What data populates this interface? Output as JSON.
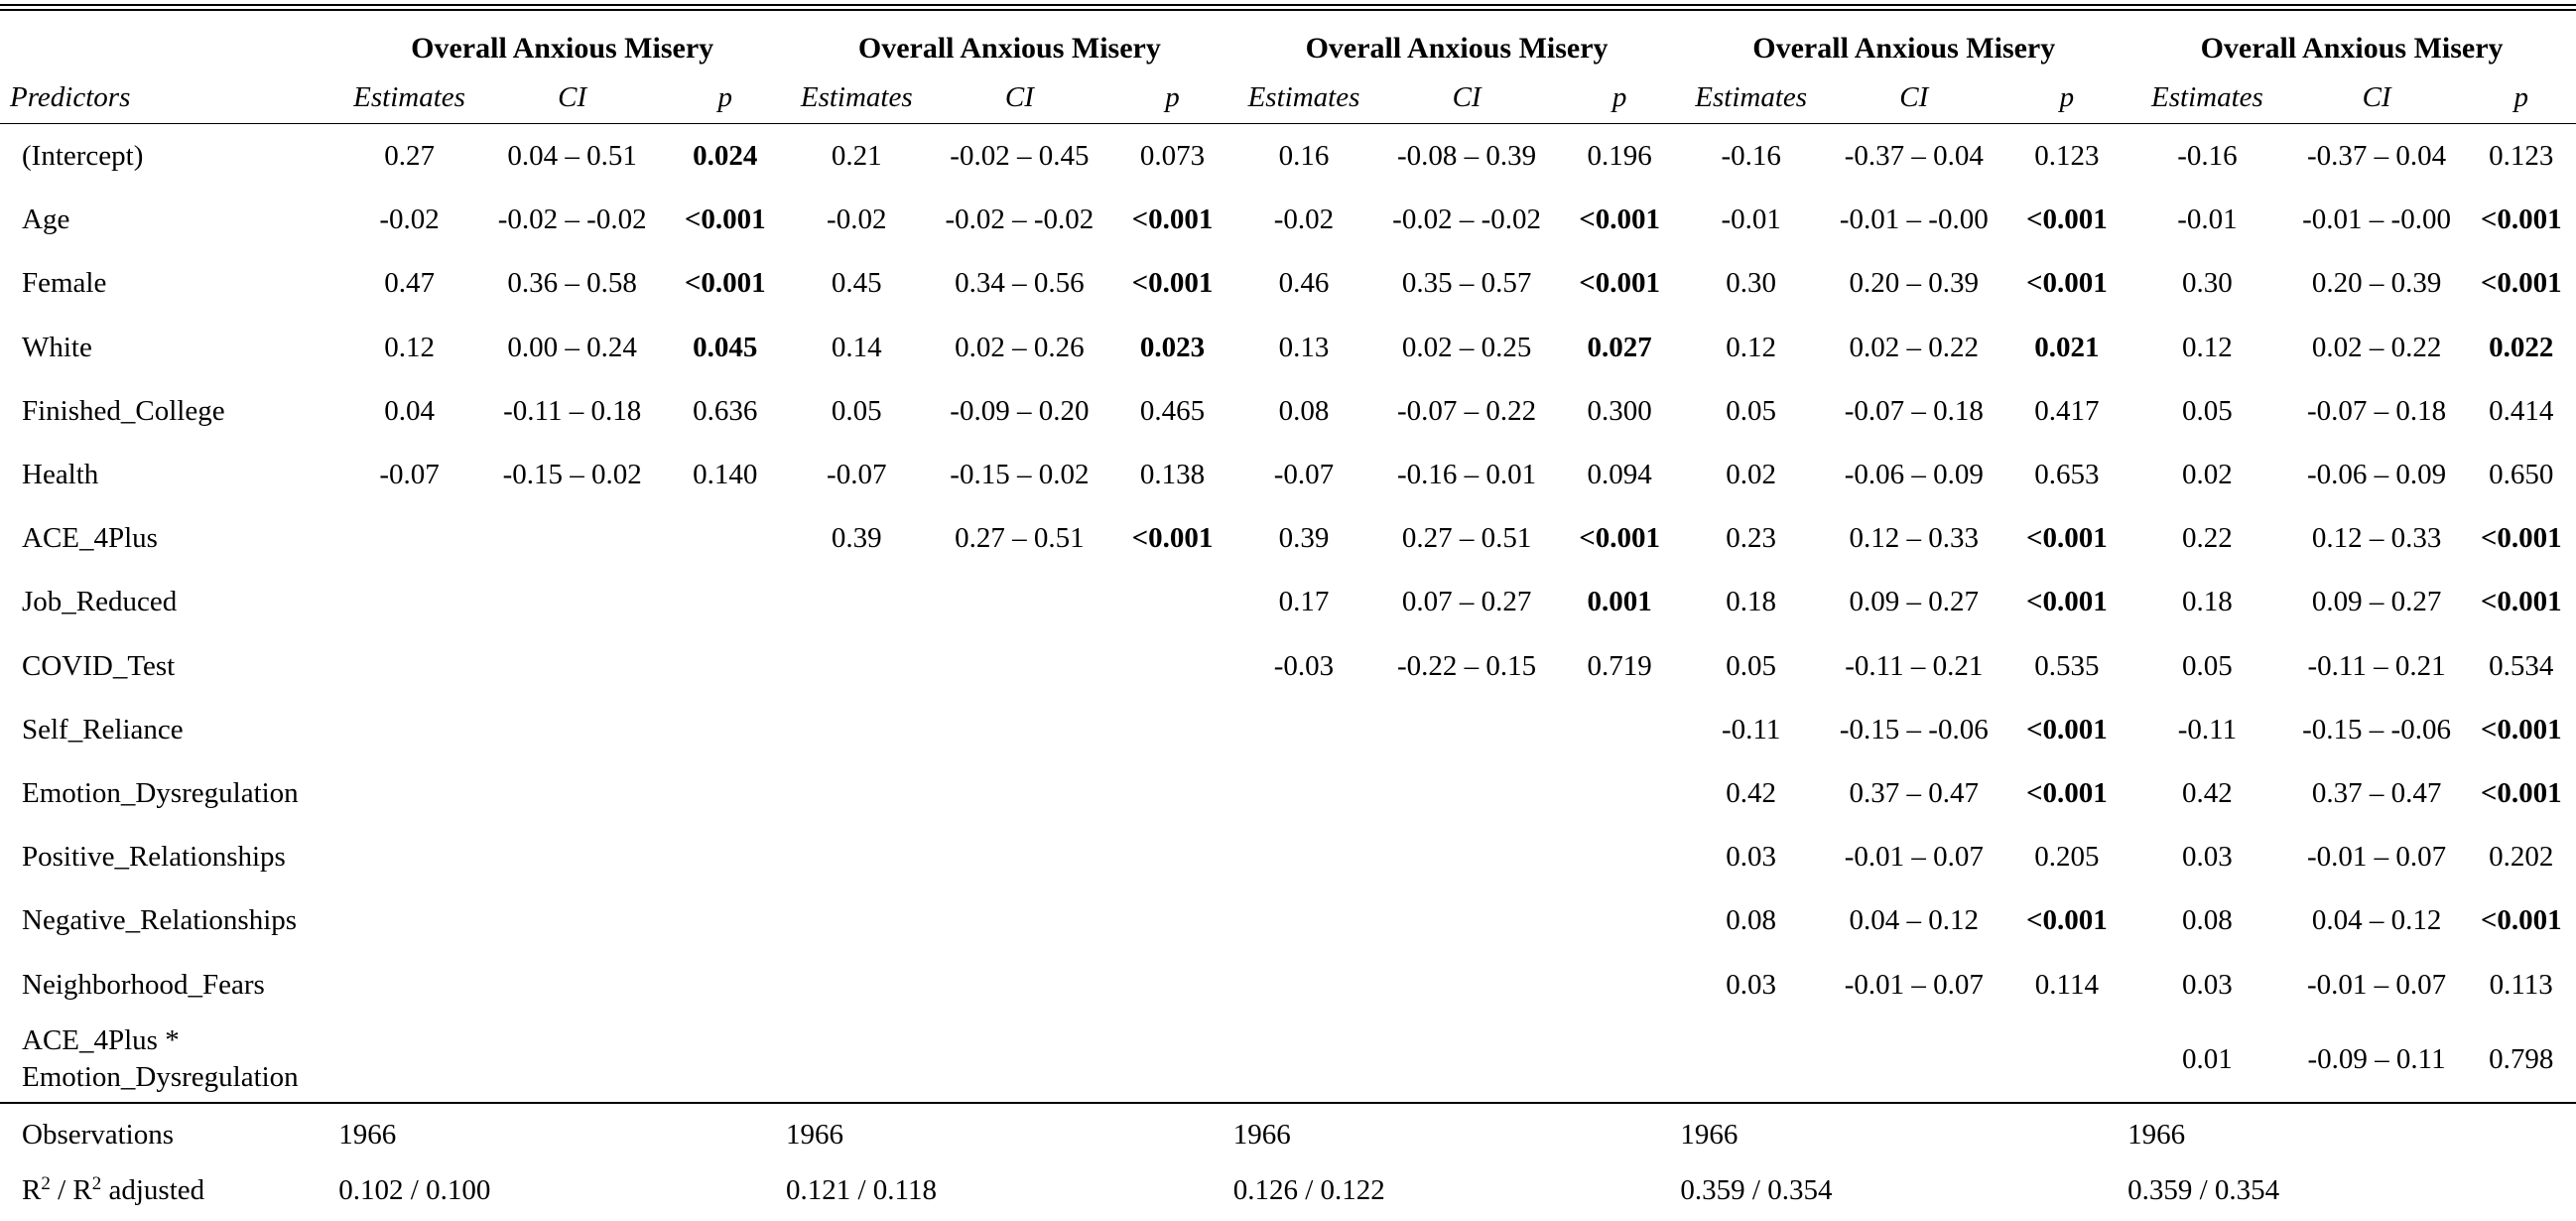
{
  "model_title": "Overall Anxious Misery",
  "headers": {
    "predictors": "Predictors",
    "estimates": "Estimates",
    "ci": "CI",
    "p": "p"
  },
  "rows": [
    {
      "label": "(Intercept)",
      "cells": [
        [
          "0.27",
          "0.04 – 0.51",
          "0.024"
        ],
        [
          "0.21",
          "-0.02 – 0.45",
          "0.073"
        ],
        [
          "0.16",
          "-0.08 – 0.39",
          "0.196"
        ],
        [
          "-0.16",
          "-0.37 – 0.04",
          "0.123"
        ],
        [
          "-0.16",
          "-0.37 – 0.04",
          "0.123"
        ]
      ]
    },
    {
      "label": "Age",
      "cells": [
        [
          "-0.02",
          "-0.02 – -0.02",
          "<0.001"
        ],
        [
          "-0.02",
          "-0.02 – -0.02",
          "<0.001"
        ],
        [
          "-0.02",
          "-0.02 – -0.02",
          "<0.001"
        ],
        [
          "-0.01",
          "-0.01 – -0.00",
          "<0.001"
        ],
        [
          "-0.01",
          "-0.01 – -0.00",
          "<0.001"
        ]
      ]
    },
    {
      "label": "Female",
      "cells": [
        [
          "0.47",
          "0.36 – 0.58",
          "<0.001"
        ],
        [
          "0.45",
          "0.34 – 0.56",
          "<0.001"
        ],
        [
          "0.46",
          "0.35 – 0.57",
          "<0.001"
        ],
        [
          "0.30",
          "0.20 – 0.39",
          "<0.001"
        ],
        [
          "0.30",
          "0.20 – 0.39",
          "<0.001"
        ]
      ]
    },
    {
      "label": "White",
      "cells": [
        [
          "0.12",
          "0.00 – 0.24",
          "0.045"
        ],
        [
          "0.14",
          "0.02 – 0.26",
          "0.023"
        ],
        [
          "0.13",
          "0.02 – 0.25",
          "0.027"
        ],
        [
          "0.12",
          "0.02 – 0.22",
          "0.021"
        ],
        [
          "0.12",
          "0.02 – 0.22",
          "0.022"
        ]
      ]
    },
    {
      "label": "Finished_College",
      "cells": [
        [
          "0.04",
          "-0.11 – 0.18",
          "0.636"
        ],
        [
          "0.05",
          "-0.09 – 0.20",
          "0.465"
        ],
        [
          "0.08",
          "-0.07 – 0.22",
          "0.300"
        ],
        [
          "0.05",
          "-0.07 – 0.18",
          "0.417"
        ],
        [
          "0.05",
          "-0.07 – 0.18",
          "0.414"
        ]
      ]
    },
    {
      "label": "Health",
      "cells": [
        [
          "-0.07",
          "-0.15 – 0.02",
          "0.140"
        ],
        [
          "-0.07",
          "-0.15 – 0.02",
          "0.138"
        ],
        [
          "-0.07",
          "-0.16 – 0.01",
          "0.094"
        ],
        [
          "0.02",
          "-0.06 – 0.09",
          "0.653"
        ],
        [
          "0.02",
          "-0.06 – 0.09",
          "0.650"
        ]
      ]
    },
    {
      "label": "ACE_4Plus",
      "cells": [
        [
          "",
          "",
          ""
        ],
        [
          "0.39",
          "0.27 – 0.51",
          "<0.001"
        ],
        [
          "0.39",
          "0.27 – 0.51",
          "<0.001"
        ],
        [
          "0.23",
          "0.12 – 0.33",
          "<0.001"
        ],
        [
          "0.22",
          "0.12 – 0.33",
          "<0.001"
        ]
      ]
    },
    {
      "label": "Job_Reduced",
      "cells": [
        [
          "",
          "",
          ""
        ],
        [
          "",
          "",
          ""
        ],
        [
          "0.17",
          "0.07 – 0.27",
          "0.001"
        ],
        [
          "0.18",
          "0.09 – 0.27",
          "<0.001"
        ],
        [
          "0.18",
          "0.09 – 0.27",
          "<0.001"
        ]
      ]
    },
    {
      "label": "COVID_Test",
      "cells": [
        [
          "",
          "",
          ""
        ],
        [
          "",
          "",
          ""
        ],
        [
          "-0.03",
          "-0.22 – 0.15",
          "0.719"
        ],
        [
          "0.05",
          "-0.11 – 0.21",
          "0.535"
        ],
        [
          "0.05",
          "-0.11 – 0.21",
          "0.534"
        ]
      ]
    },
    {
      "label": "Self_Reliance",
      "cells": [
        [
          "",
          "",
          ""
        ],
        [
          "",
          "",
          ""
        ],
        [
          "",
          "",
          ""
        ],
        [
          "-0.11",
          "-0.15 – -0.06",
          "<0.001"
        ],
        [
          "-0.11",
          "-0.15 – -0.06",
          "<0.001"
        ]
      ]
    },
    {
      "label": "Emotion_Dysregulation",
      "cells": [
        [
          "",
          "",
          ""
        ],
        [
          "",
          "",
          ""
        ],
        [
          "",
          "",
          ""
        ],
        [
          "0.42",
          "0.37 – 0.47",
          "<0.001"
        ],
        [
          "0.42",
          "0.37 – 0.47",
          "<0.001"
        ]
      ]
    },
    {
      "label": "Positive_Relationships",
      "cells": [
        [
          "",
          "",
          ""
        ],
        [
          "",
          "",
          ""
        ],
        [
          "",
          "",
          ""
        ],
        [
          "0.03",
          "-0.01 – 0.07",
          "0.205"
        ],
        [
          "0.03",
          "-0.01 – 0.07",
          "0.202"
        ]
      ]
    },
    {
      "label": "Negative_Relationships",
      "cells": [
        [
          "",
          "",
          ""
        ],
        [
          "",
          "",
          ""
        ],
        [
          "",
          "",
          ""
        ],
        [
          "0.08",
          "0.04 – 0.12",
          "<0.001"
        ],
        [
          "0.08",
          "0.04 – 0.12",
          "<0.001"
        ]
      ]
    },
    {
      "label": "Neighborhood_Fears",
      "cells": [
        [
          "",
          "",
          ""
        ],
        [
          "",
          "",
          ""
        ],
        [
          "",
          "",
          ""
        ],
        [
          "0.03",
          "-0.01 – 0.07",
          "0.114"
        ],
        [
          "0.03",
          "-0.01 – 0.07",
          "0.113"
        ]
      ]
    },
    {
      "label": "ACE_4Plus * Emotion_Dysregulation",
      "cells": [
        [
          "",
          "",
          ""
        ],
        [
          "",
          "",
          ""
        ],
        [
          "",
          "",
          ""
        ],
        [
          "",
          "",
          ""
        ],
        [
          "0.01",
          "-0.09 – 0.11",
          "0.798"
        ]
      ]
    }
  ],
  "footer": {
    "observations_label": "Observations",
    "observations": [
      "1966",
      "1966",
      "1966",
      "1966",
      "1966"
    ],
    "r2_label_parts": [
      "R",
      "2",
      " / R",
      "2",
      " adjusted"
    ],
    "r2": [
      "0.102 / 0.100",
      "0.121 / 0.118",
      "0.126 / 0.122",
      "0.359 / 0.354",
      "0.359 / 0.354"
    ]
  }
}
